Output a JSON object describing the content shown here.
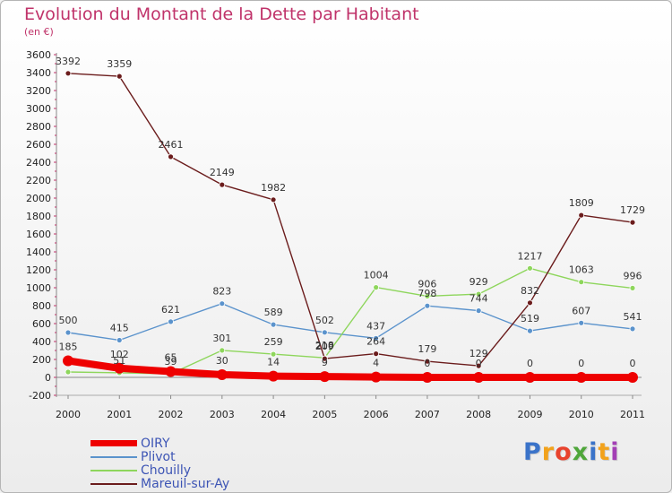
{
  "header": {
    "title": "Evolution du Montant de la Dette par Habitant",
    "subtitle": "(en €)"
  },
  "colors": {
    "title": "#c0336a",
    "axis": "#888888",
    "legend_text": "#3d55b5"
  },
  "chart_data": {
    "type": "line",
    "title": "Evolution du Montant de la Dette par Habitant",
    "subtitle": "(en €)",
    "xlabel": "",
    "ylabel": "",
    "ylim": [
      -200,
      3600
    ],
    "y_ticks": [
      -200,
      0,
      200,
      400,
      600,
      800,
      1000,
      1200,
      1400,
      1600,
      1800,
      2000,
      2200,
      2400,
      2600,
      2800,
      3000,
      3200,
      3400,
      3600
    ],
    "grid": false,
    "legend_position": "bottom-left",
    "categories": [
      "2000",
      "2001",
      "2002",
      "2003",
      "2004",
      "2005",
      "2006",
      "2007",
      "2008",
      "2009",
      "2010",
      "2011"
    ],
    "series": [
      {
        "name": "OIRY",
        "color": "#ee0000",
        "values": [
          185,
          102,
          65,
          30,
          14,
          9,
          4,
          0,
          0,
          0,
          0,
          0
        ],
        "labels": [
          "185",
          "102",
          "65",
          "30",
          "14",
          "9",
          "4",
          "0",
          "0",
          "0",
          "0",
          "0"
        ]
      },
      {
        "name": "Plivot",
        "color": "#5b93cc",
        "values": [
          500,
          415,
          621,
          823,
          589,
          502,
          437,
          798,
          744,
          519,
          607,
          541
        ],
        "labels": [
          "500",
          "415",
          "621",
          "823",
          "589",
          "502",
          "437",
          "798",
          "744",
          "519",
          "607",
          "541"
        ]
      },
      {
        "name": "Chouilly",
        "color": "#8ed65c",
        "values": [
          60,
          51,
          39,
          301,
          259,
          218,
          1004,
          906,
          929,
          1217,
          1063,
          996
        ],
        "labels": [
          "",
          "51",
          "39",
          "301",
          "259",
          "218",
          "1004",
          "906",
          "929",
          "1217",
          "1063",
          "996"
        ]
      },
      {
        "name": "Mareuil-sur-Ay",
        "color": "#6b1c1c",
        "values": [
          3392,
          3359,
          2461,
          2149,
          1982,
          209,
          264,
          179,
          129,
          832,
          1809,
          1729
        ],
        "labels": [
          "3392",
          "3359",
          "2461",
          "2149",
          "1982",
          "209",
          "264",
          "179",
          "129",
          "832",
          "1809",
          "1729"
        ]
      }
    ]
  },
  "logo": {
    "letters": [
      "P",
      "r",
      "o",
      "x",
      "i",
      "t",
      "i"
    ]
  }
}
